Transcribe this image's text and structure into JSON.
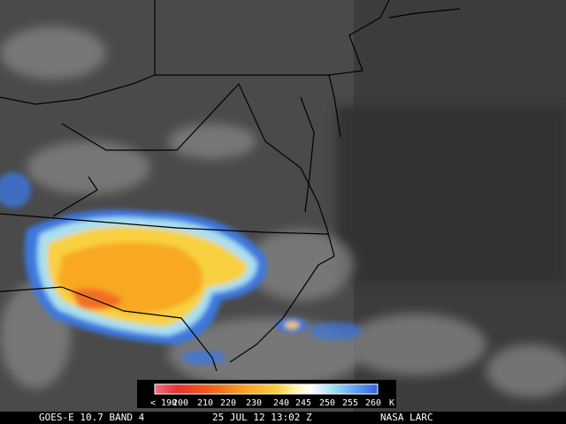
{
  "legend": {
    "labels": [
      "< 190",
      "200",
      "210",
      "220",
      "230",
      "240",
      "245",
      "250",
      "255",
      "260"
    ],
    "unit": "K"
  },
  "footer": {
    "satellite": "GOES-E 10.7 BAND 4",
    "time": "25 JUL 12 13:02 Z",
    "source": "NASA LARC"
  }
}
